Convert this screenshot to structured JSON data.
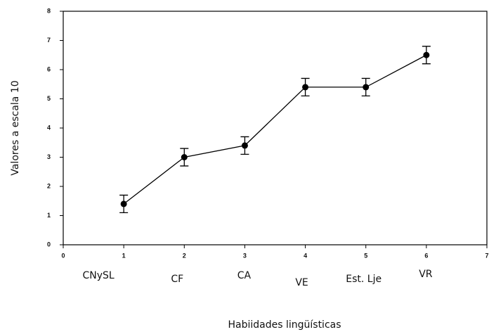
{
  "chart_data": {
    "type": "line",
    "x": [
      1,
      2,
      3,
      4,
      5,
      6
    ],
    "categories": [
      "CNySL",
      "CF",
      "CA",
      "VE",
      "Est. Lje",
      "VR"
    ],
    "values": [
      1.4,
      3.0,
      3.4,
      5.4,
      5.4,
      6.5
    ],
    "errors": [
      0.3,
      0.3,
      0.3,
      0.3,
      0.3,
      0.3
    ],
    "color": "#000000",
    "xlim": [
      0,
      7
    ],
    "xticks": [
      0,
      1,
      2,
      3,
      4,
      5,
      6,
      7
    ],
    "ylim": [
      0,
      8
    ],
    "yticks": [
      0,
      1,
      2,
      3,
      4,
      5,
      6,
      7,
      8
    ],
    "ylabel": "Valores a escala 10",
    "xlabel": "Habiidades lingüísticas"
  }
}
